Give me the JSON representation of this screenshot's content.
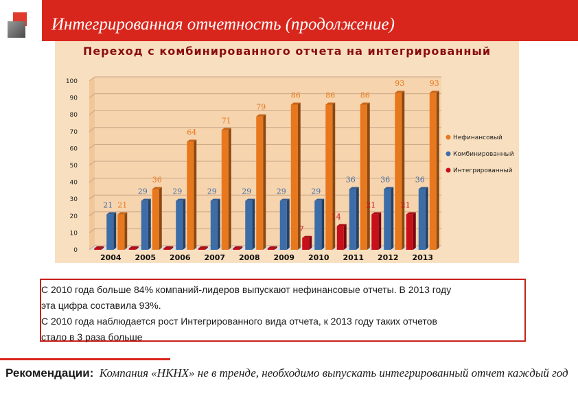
{
  "header": {
    "title": "Интегрированная отчетность (продолжение)"
  },
  "chart_data": {
    "type": "bar",
    "title": "Переход с комбинированного отчета на интегрированный",
    "categories": [
      "2004",
      "2005",
      "2006",
      "2007",
      "2008",
      "2009",
      "2010",
      "2011",
      "2012",
      "2013"
    ],
    "series": [
      {
        "name": "Нефинансовый",
        "color": "#e8781e",
        "values": [
          21,
          36,
          64,
          71,
          79,
          86,
          86,
          86,
          93,
          93
        ]
      },
      {
        "name": "Комбинированный",
        "color": "#3d6da8",
        "values": [
          21,
          29,
          29,
          29,
          29,
          29,
          29,
          36,
          36,
          36
        ]
      },
      {
        "name": "Интегрированный",
        "color": "#c8101a",
        "values": [
          0,
          0,
          0,
          0,
          0,
          0,
          7,
          14,
          21,
          21
        ]
      }
    ],
    "value_labels": {
      "Нефинансовый": [
        "21",
        "36",
        "64",
        "71",
        "79",
        "86",
        "86",
        "86",
        "93",
        "93"
      ],
      "Комбинированный": [
        "21",
        "29",
        "29",
        "29",
        "29",
        "29",
        "29",
        "36",
        "36",
        "36"
      ],
      "Интегрированный": [
        "",
        "",
        "",
        "",
        "",
        "",
        "7",
        "14",
        "21",
        "21"
      ]
    },
    "ylim": [
      0,
      100
    ],
    "yticks": [
      "0",
      "10",
      "20",
      "30",
      "40",
      "50",
      "60",
      "70",
      "80",
      "90",
      "100"
    ],
    "grid": true,
    "legend": "right"
  },
  "notes": {
    "line1": "С 2010 года больше 84% компаний-лидеров выпускают нефинансовые отчеты. В 2013 году",
    "line2": "эта цифра составила 93%.",
    "line3": "С 2010 года наблюдается рост Интегрированного вида отчета, к 2013 году таких отчетов",
    "line4": "стало в 3 раза больше"
  },
  "recommendation": {
    "label": "Рекомендации:",
    "text": "Компания «НКНХ» не в тренде, необходимо выпускать интегрированный отчет каждый год"
  }
}
